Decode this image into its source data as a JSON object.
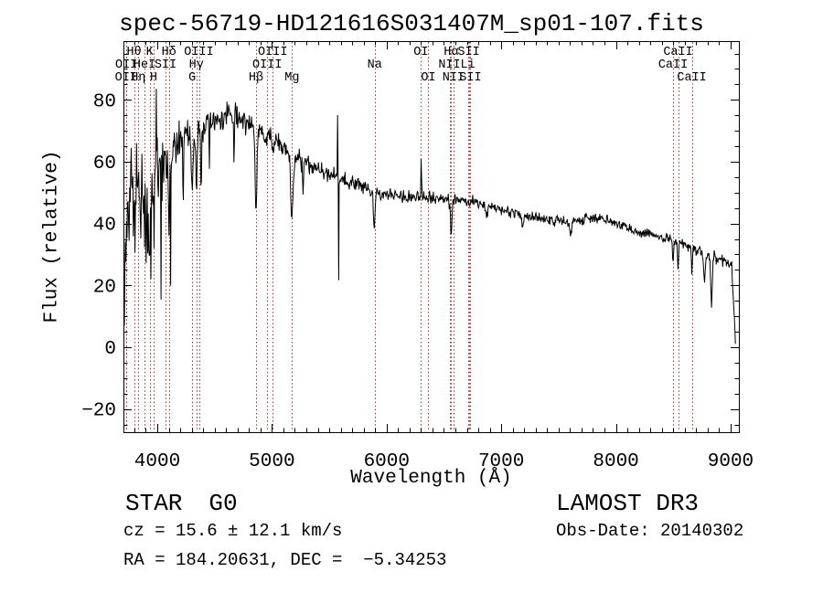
{
  "title": "spec-56719-HD121616S031407M_sp01-107.fits",
  "footer": {
    "class": "STAR",
    "subclass": "G0",
    "survey": "LAMOST DR3",
    "cz": "cz = 15.6 ± 12.1 km/s",
    "obs_date": "Obs-Date: 20140302",
    "ra_dec": "RA = 184.20631, DEC =  −5.34253"
  },
  "chart_data": {
    "type": "line",
    "title": "spec-56719-HD121616S031407M_sp01-107.fits",
    "xlabel": "Wavelength (Å)",
    "ylabel": "Flux (relative)",
    "xlim": [
      3705,
      9072
    ],
    "ylim": [
      -27.5,
      99
    ],
    "x_ticks": [
      4000,
      5000,
      6000,
      7000,
      8000,
      9000
    ],
    "x_tick_labels": [
      "4000",
      "5000",
      "6000",
      "7000",
      "8000",
      "9000"
    ],
    "y_ticks": [
      -20,
      0,
      20,
      40,
      60,
      80
    ],
    "y_tick_labels": [
      "−20",
      "0",
      "20",
      "40",
      "60",
      "80"
    ],
    "x_minor_step": 100,
    "y_minor_step": 5,
    "grid": false,
    "legend": "none",
    "line_color": "#000000",
    "marker_color": "#993333",
    "seed": 20140302,
    "samples": 1150,
    "x_start": 3708,
    "x_end": 9042,
    "continuum": [
      [
        3705,
        20
      ],
      [
        3730,
        38
      ],
      [
        3760,
        48
      ],
      [
        3800,
        52
      ],
      [
        3840,
        45
      ],
      [
        3880,
        50
      ],
      [
        3920,
        42
      ],
      [
        3960,
        55
      ],
      [
        4000,
        60
      ],
      [
        4060,
        58
      ],
      [
        4100,
        60
      ],
      [
        4150,
        66
      ],
      [
        4250,
        70
      ],
      [
        4350,
        70
      ],
      [
        4450,
        73
      ],
      [
        4550,
        74
      ],
      [
        4650,
        75
      ],
      [
        4750,
        74
      ],
      [
        4800,
        72
      ],
      [
        4900,
        69
      ],
      [
        5000,
        67
      ],
      [
        5100,
        64
      ],
      [
        5200,
        61
      ],
      [
        5300,
        59
      ],
      [
        5400,
        57.5
      ],
      [
        5500,
        56
      ],
      [
        5600,
        54.5
      ],
      [
        5700,
        53
      ],
      [
        5800,
        51.5
      ],
      [
        5900,
        50
      ],
      [
        6000,
        49.5
      ],
      [
        6100,
        49
      ],
      [
        6200,
        48.5
      ],
      [
        6350,
        48
      ],
      [
        6500,
        47.5
      ],
      [
        6650,
        47.5
      ],
      [
        6750,
        47
      ],
      [
        6900,
        45.5
      ],
      [
        7000,
        44.5
      ],
      [
        7150,
        43
      ],
      [
        7300,
        42
      ],
      [
        7450,
        41
      ],
      [
        7600,
        40.5
      ],
      [
        7750,
        41.5
      ],
      [
        7850,
        42
      ],
      [
        7950,
        40.5
      ],
      [
        8100,
        38.5
      ],
      [
        8250,
        37
      ],
      [
        8400,
        35.5
      ],
      [
        8550,
        34
      ],
      [
        8700,
        31.5
      ],
      [
        8800,
        30
      ],
      [
        8900,
        28.5
      ],
      [
        8970,
        27.5
      ],
      [
        9010,
        26
      ],
      [
        9028,
        12
      ],
      [
        9042,
        2
      ]
    ],
    "noise_profile": [
      [
        3708,
        16
      ],
      [
        3760,
        18
      ],
      [
        3850,
        17
      ],
      [
        3950,
        15
      ],
      [
        4050,
        11
      ],
      [
        4150,
        7
      ],
      [
        4300,
        5
      ],
      [
        4500,
        4.5
      ],
      [
        4800,
        4
      ],
      [
        5100,
        3.5
      ],
      [
        5400,
        3
      ],
      [
        5700,
        2.8
      ],
      [
        6000,
        2.5
      ],
      [
        6400,
        2.2
      ],
      [
        6800,
        2
      ],
      [
        7200,
        1.8
      ],
      [
        7600,
        1.7
      ],
      [
        8000,
        1.7
      ],
      [
        8400,
        1.8
      ],
      [
        8700,
        2
      ],
      [
        8900,
        2.2
      ],
      [
        9042,
        2.5
      ]
    ],
    "blue_noise_region": {
      "max_wavelength": 4160,
      "down_spike_prob": 0.055,
      "down_spike_depth": 50,
      "up_spike_prob": 0.05,
      "up_spike_height": 18
    },
    "features": [
      {
        "c": 3934,
        "w": 5,
        "d": -22
      },
      {
        "c": 3969,
        "w": 5,
        "d": -20
      },
      {
        "c": 4102,
        "w": 6,
        "d": -20
      },
      {
        "c": 4226,
        "w": 3,
        "d": -25
      },
      {
        "c": 4305,
        "w": 9,
        "d": -18
      },
      {
        "c": 4341,
        "w": 6,
        "d": -22
      },
      {
        "c": 4383,
        "w": 3,
        "d": -20
      },
      {
        "c": 4455,
        "w": 3,
        "d": -15
      },
      {
        "c": 4668,
        "w": 3,
        "d": -14
      },
      {
        "c": 4861,
        "w": 7,
        "d": -28
      },
      {
        "c": 5175,
        "w": 10,
        "d": -20
      },
      {
        "c": 5270,
        "w": 4,
        "d": -10
      },
      {
        "c": 5574,
        "w": 2.2,
        "d": 26
      },
      {
        "c": 5581,
        "w": 2.5,
        "d": -34
      },
      {
        "c": 5893,
        "w": 7,
        "d": -13
      },
      {
        "c": 6302,
        "w": 2.5,
        "d": 13
      },
      {
        "c": 6563,
        "w": 6,
        "d": -11
      },
      {
        "c": 6872,
        "w": 6,
        "d": -4
      },
      {
        "c": 7186,
        "w": 8,
        "d": -3
      },
      {
        "c": 7605,
        "w": 8,
        "d": -4
      },
      {
        "c": 8498,
        "w": 4,
        "d": -7
      },
      {
        "c": 8542,
        "w": 4,
        "d": -9
      },
      {
        "c": 8662,
        "w": 4,
        "d": -8
      },
      {
        "c": 8772,
        "w": 6,
        "d": -8
      },
      {
        "c": 8833,
        "w": 7,
        "d": -15
      }
    ],
    "marker_lines": [
      {
        "wl": 3727,
        "label": "OII",
        "row": 3
      },
      {
        "wl": 3730,
        "label": "OII",
        "row": 2
      },
      {
        "wl": 3798,
        "label": "Hθ",
        "row": 1
      },
      {
        "wl": 3835,
        "label": "Hη",
        "row": 3
      },
      {
        "wl": 3889,
        "label": "HeI",
        "row": 2
      },
      {
        "wl": 3934,
        "label": "K",
        "row": 1
      },
      {
        "wl": 3969,
        "label": "H",
        "row": 3
      },
      {
        "wl": 4072,
        "label": "SII",
        "row": 2
      },
      {
        "wl": 4102,
        "label": "Hδ",
        "row": 1
      },
      {
        "wl": 4305,
        "label": "G",
        "row": 3
      },
      {
        "wl": 4341,
        "label": "Hγ",
        "row": 2
      },
      {
        "wl": 4363,
        "label": "OIII",
        "row": 1
      },
      {
        "wl": 4861,
        "label": "Hβ",
        "row": 3
      },
      {
        "wl": 4959,
        "label": "OIII",
        "row": 2
      },
      {
        "wl": 5007,
        "label": "OIII",
        "row": 1
      },
      {
        "wl": 5175,
        "label": "Mg",
        "row": 3
      },
      {
        "wl": 5896,
        "label": "Na",
        "row": 2
      },
      {
        "wl": 6300,
        "label": "OI",
        "row": 1
      },
      {
        "wl": 6364,
        "label": "OI",
        "row": 3
      },
      {
        "wl": 6548,
        "label": "NII",
        "row": 2
      },
      {
        "wl": 6563,
        "label": "Hα",
        "row": 1
      },
      {
        "wl": 6583,
        "label": "NII",
        "row": 3
      },
      {
        "wl": 6708,
        "label": "Li",
        "row": 2
      },
      {
        "wl": 6716,
        "label": "SII",
        "row": 1
      },
      {
        "wl": 6731,
        "label": "SII",
        "row": 3
      },
      {
        "wl": 8498,
        "label": "CaII",
        "row": 2
      },
      {
        "wl": 8542,
        "label": "CaII",
        "row": 1
      },
      {
        "wl": 8662,
        "label": "CaII",
        "row": 3
      }
    ]
  }
}
